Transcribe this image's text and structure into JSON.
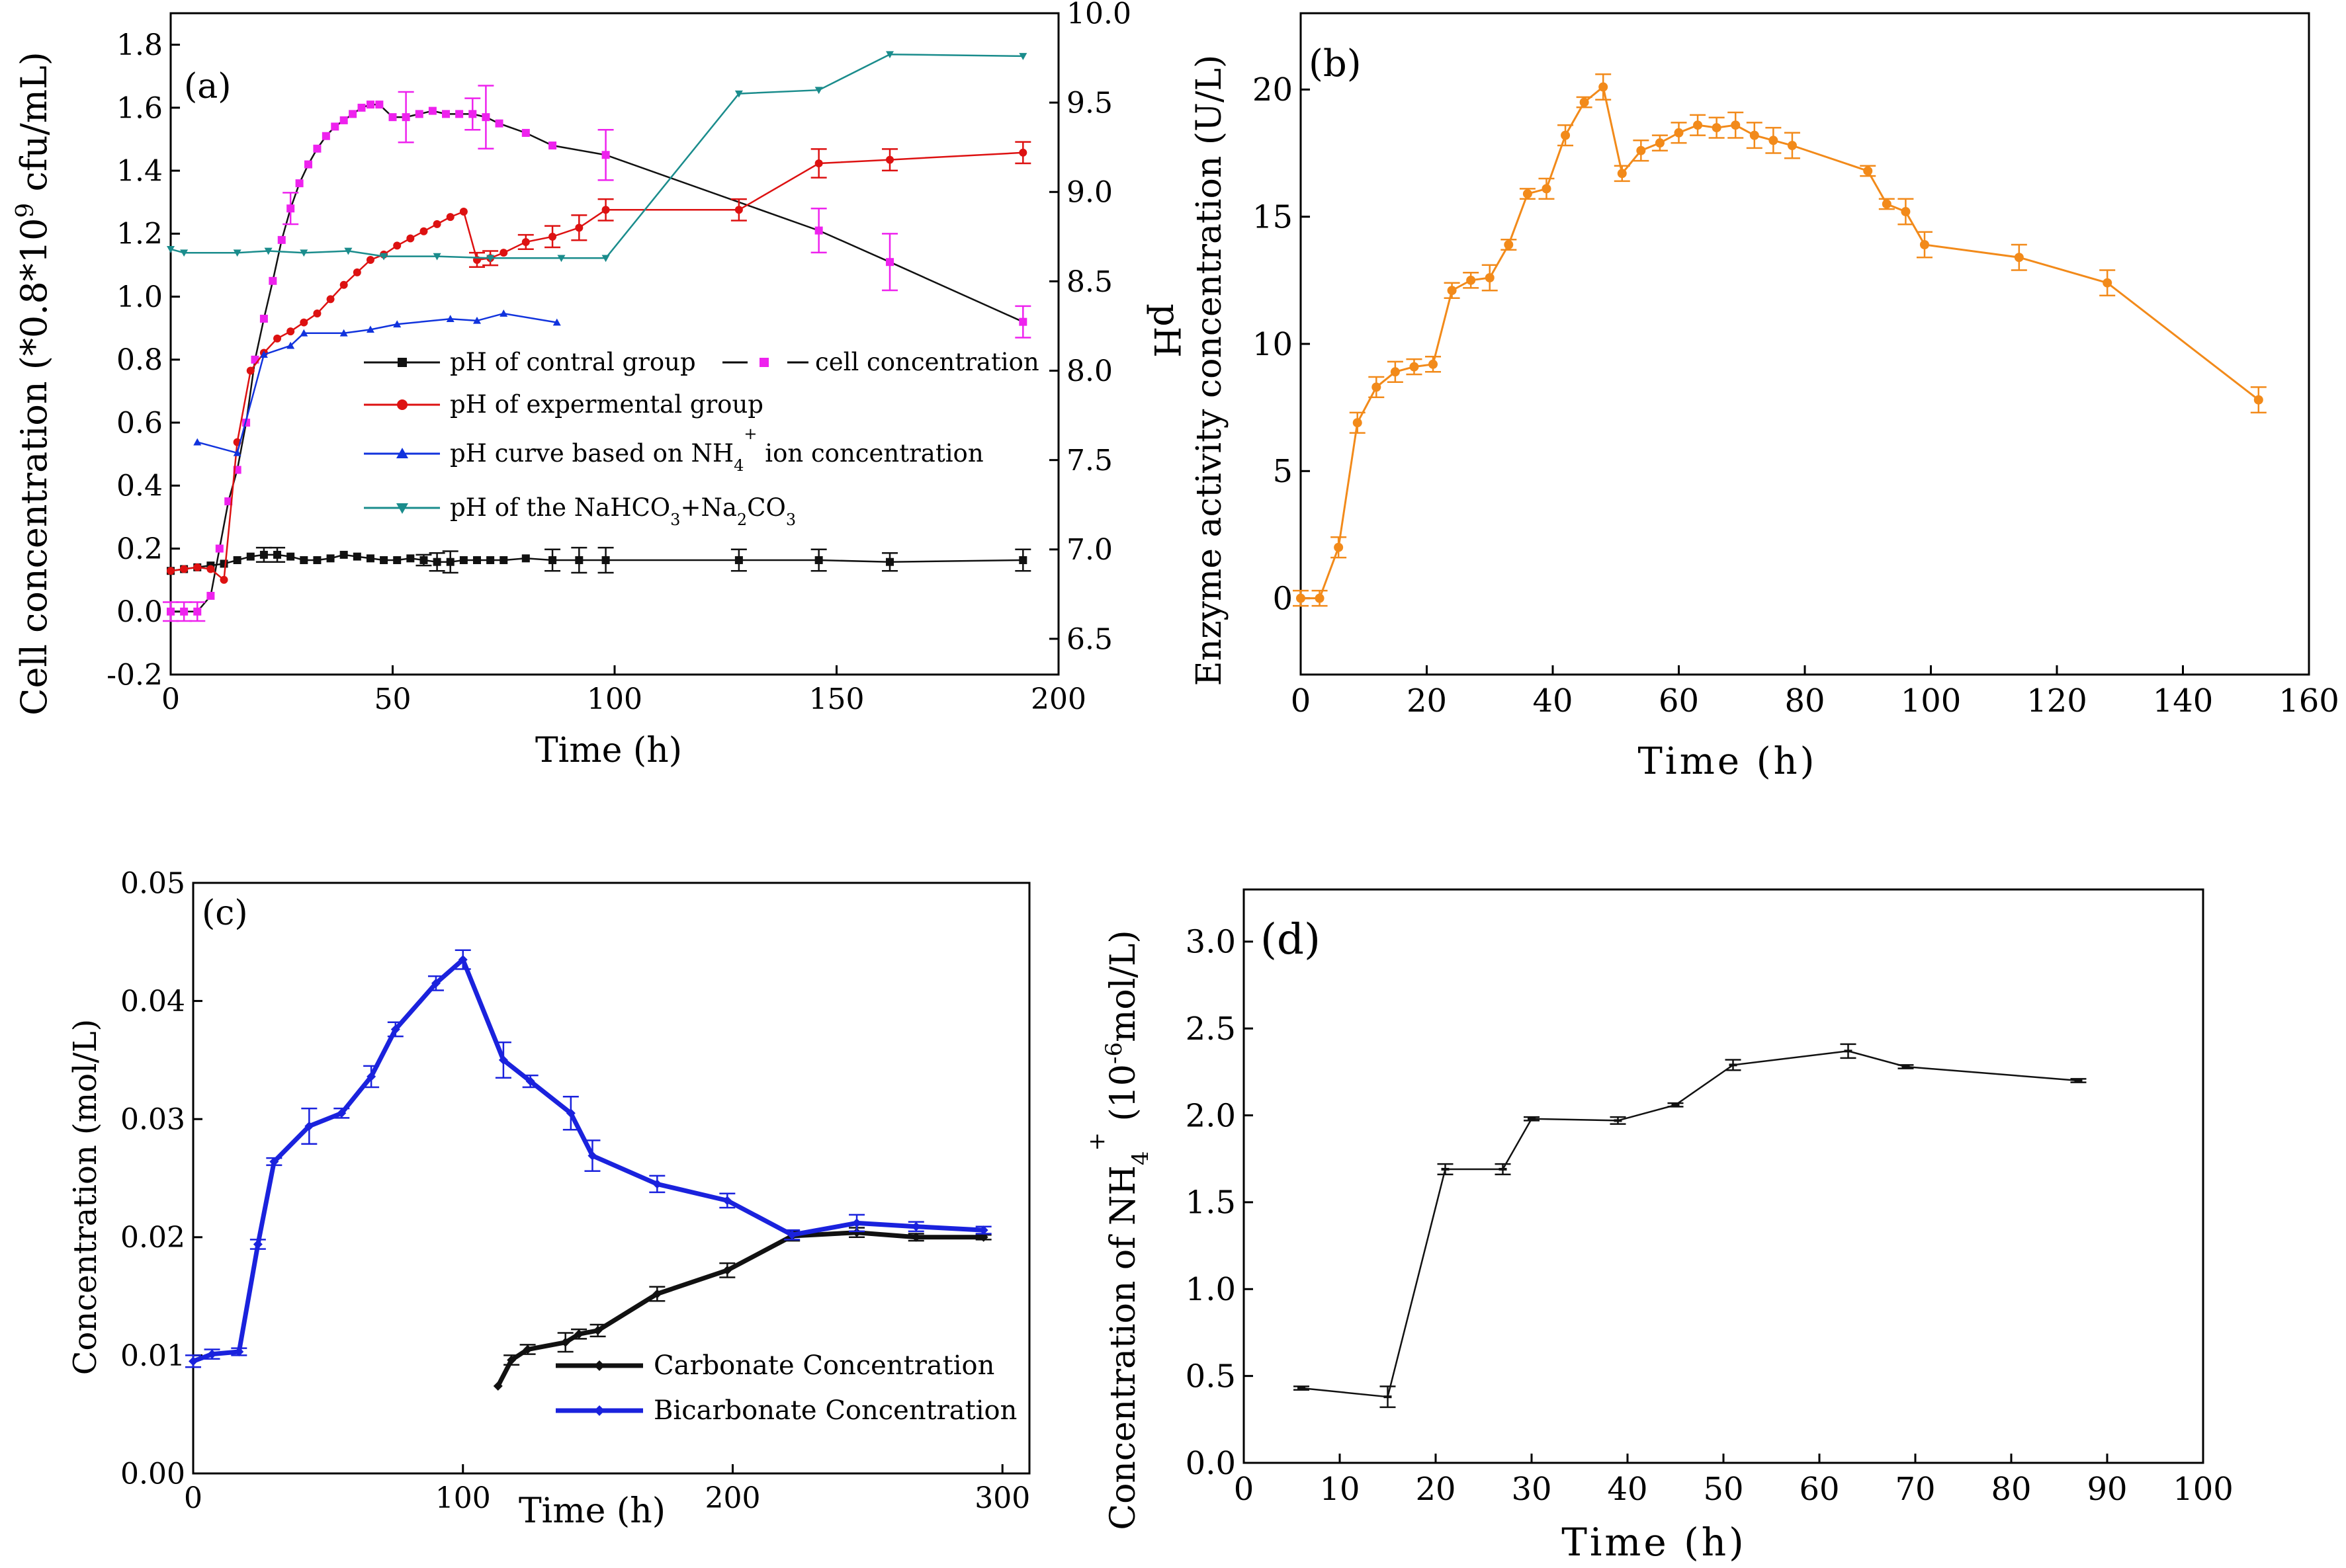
{
  "chart_data": [
    {
      "panel": "a",
      "panel_label": "(a)",
      "type": "line",
      "xlabel": "Time (h)",
      "ylabel_left": "Cell concentration (*0.8*10⁹ cfu/mL)",
      "ylabel_right": "pH",
      "xlim": [
        0,
        200
      ],
      "ylim_left": [
        -0.2,
        1.9
      ],
      "ylim_right": [
        6.3,
        10.0
      ],
      "x_ticks": [
        "0",
        "50",
        "100",
        "150",
        "200"
      ],
      "y_ticks_left": [
        "-0.2",
        "0.0",
        "0.2",
        "0.4",
        "0.6",
        "0.8",
        "1.0",
        "1.2",
        "1.4",
        "1.6",
        "1.8"
      ],
      "y_ticks_right": [
        "6.5",
        "7.0",
        "7.5",
        "8.0",
        "8.5",
        "9.0",
        "9.5",
        "10.0"
      ],
      "legend": [
        "pH of contral group",
        "cell concentration",
        "pH of expermental group",
        "pH curve based on NH4+ ion concentration",
        "pH of the NaHCO3+Na2CO3"
      ],
      "series": [
        {
          "name": "pH of contral group",
          "axis": "right",
          "color": "#111111",
          "marker": "square",
          "x": [
            0,
            3,
            6,
            9,
            12,
            15,
            18,
            21,
            24,
            27,
            30,
            33,
            36,
            39,
            42,
            45,
            48,
            51,
            54,
            57,
            60,
            63,
            66,
            69,
            72,
            75,
            80,
            86,
            92,
            98,
            128,
            146,
            162,
            192
          ],
          "y": [
            6.88,
            6.89,
            6.9,
            6.91,
            6.92,
            6.94,
            6.96,
            6.97,
            6.97,
            6.96,
            6.94,
            6.94,
            6.95,
            6.97,
            6.96,
            6.95,
            6.94,
            6.94,
            6.95,
            6.94,
            6.93,
            6.93,
            6.94,
            6.94,
            6.94,
            6.94,
            6.95,
            6.94,
            6.94,
            6.94,
            6.94,
            6.94,
            6.93,
            6.94
          ],
          "err": [
            0,
            0,
            0,
            0,
            0,
            0,
            0,
            0.04,
            0.04,
            0,
            0,
            0,
            0,
            0,
            0,
            0,
            0,
            0,
            0,
            0.03,
            0.05,
            0.06,
            0,
            0,
            0,
            0,
            0,
            0.06,
            0.07,
            0.07,
            0.06,
            0.06,
            0.05,
            0.06
          ]
        },
        {
          "name": "cell concentration",
          "axis": "left",
          "color": "#ee22ee",
          "marker": "square",
          "x": [
            0,
            3,
            6,
            9,
            11,
            13,
            15,
            17,
            19,
            21,
            23,
            25,
            27,
            29,
            31,
            33,
            35,
            37,
            39,
            41,
            43,
            45,
            47,
            50,
            53,
            56,
            59,
            62,
            65,
            68,
            71,
            74,
            80,
            86,
            98,
            146,
            162,
            192
          ],
          "y": [
            0.0,
            0.0,
            0.0,
            0.05,
            0.2,
            0.35,
            0.45,
            0.6,
            0.8,
            0.93,
            1.05,
            1.18,
            1.28,
            1.36,
            1.42,
            1.47,
            1.51,
            1.54,
            1.56,
            1.58,
            1.6,
            1.61,
            1.61,
            1.57,
            1.57,
            1.58,
            1.59,
            1.58,
            1.58,
            1.58,
            1.57,
            1.55,
            1.52,
            1.48,
            1.45,
            1.21,
            1.11,
            0.92
          ],
          "err": [
            0.03,
            0.03,
            0.03,
            0,
            0,
            0,
            0,
            0,
            0,
            0,
            0,
            0,
            0.05,
            0,
            0,
            0,
            0,
            0,
            0,
            0,
            0,
            0,
            0,
            0,
            0.08,
            0,
            0,
            0,
            0,
            0.05,
            0.1,
            0,
            0,
            0,
            0.08,
            0.07,
            0.09,
            0.05
          ]
        },
        {
          "name": "pH of expermental group",
          "axis": "right",
          "color": "#dd1111",
          "marker": "circle",
          "x": [
            0,
            3,
            6,
            9,
            12,
            15,
            18,
            21,
            24,
            27,
            30,
            33,
            36,
            39,
            42,
            45,
            48,
            51,
            54,
            57,
            60,
            63,
            66,
            69,
            72,
            75,
            80,
            86,
            92,
            98,
            128,
            146,
            162,
            192
          ],
          "y": [
            6.88,
            6.89,
            6.9,
            6.89,
            6.83,
            7.6,
            8.0,
            8.1,
            8.18,
            8.22,
            8.27,
            8.32,
            8.4,
            8.48,
            8.55,
            8.62,
            8.65,
            8.7,
            8.74,
            8.78,
            8.82,
            8.86,
            8.89,
            8.62,
            8.63,
            8.66,
            8.72,
            8.75,
            8.8,
            8.9,
            8.9,
            9.16,
            9.18,
            9.22
          ],
          "err": [
            0,
            0,
            0,
            0,
            0,
            0,
            0,
            0,
            0,
            0,
            0,
            0,
            0,
            0,
            0,
            0,
            0,
            0,
            0,
            0,
            0,
            0,
            0,
            0.04,
            0.04,
            0,
            0.04,
            0.06,
            0.07,
            0.06,
            0.06,
            0.08,
            0.06,
            0.06
          ]
        },
        {
          "name": "pH curve based on NH4+ ion concentration",
          "axis": "right",
          "color": "#1133dd",
          "marker": "triangle",
          "x": [
            6,
            15,
            21,
            27,
            30,
            39,
            45,
            51,
            63,
            69,
            75,
            87
          ],
          "y": [
            7.6,
            7.54,
            8.09,
            8.14,
            8.21,
            8.21,
            8.23,
            8.26,
            8.29,
            8.28,
            8.32,
            8.27
          ],
          "err": [
            0,
            0,
            0,
            0,
            0,
            0,
            0,
            0,
            0,
            0,
            0,
            0
          ]
        },
        {
          "name": "pH of the NaHCO3+Na2CO3",
          "axis": "right",
          "color": "#1a8c8c",
          "marker": "triangle-down",
          "x": [
            0,
            3,
            15,
            22,
            30,
            40,
            48,
            60,
            72,
            88,
            98,
            128,
            146,
            162,
            192
          ],
          "y": [
            8.68,
            8.66,
            8.66,
            8.67,
            8.66,
            8.67,
            8.64,
            8.64,
            8.63,
            8.63,
            8.63,
            9.55,
            9.57,
            9.77,
            9.76
          ],
          "err": [
            0,
            0,
            0,
            0,
            0,
            0,
            0,
            0,
            0,
            0,
            0,
            0,
            0,
            0,
            0
          ]
        }
      ]
    },
    {
      "panel": "b",
      "panel_label": "(b)",
      "type": "line",
      "xlabel": "Time (h)",
      "ylabel": "Enzyme activity concentration (U/L)",
      "xlim": [
        0,
        160
      ],
      "ylim": [
        -3,
        23
      ],
      "x_ticks": [
        "0",
        "20",
        "40",
        "60",
        "80",
        "100",
        "120",
        "140",
        "160"
      ],
      "y_ticks": [
        "0",
        "5",
        "10",
        "15",
        "20"
      ],
      "series": [
        {
          "name": "Enzyme activity",
          "color": "#f28a1a",
          "marker": "circle",
          "x": [
            0,
            3,
            6,
            9,
            12,
            15,
            18,
            21,
            24,
            27,
            30,
            33,
            36,
            39,
            42,
            45,
            48,
            51,
            54,
            57,
            60,
            63,
            66,
            69,
            72,
            75,
            78,
            90,
            93,
            96,
            99,
            114,
            128,
            152
          ],
          "y": [
            0.0,
            0.0,
            2.0,
            6.9,
            8.3,
            8.9,
            9.1,
            9.2,
            12.1,
            12.5,
            12.6,
            13.9,
            15.9,
            16.1,
            18.2,
            19.5,
            20.1,
            16.7,
            17.6,
            17.9,
            18.3,
            18.6,
            18.5,
            18.6,
            18.2,
            18.0,
            17.8,
            16.8,
            15.5,
            15.2,
            13.9,
            13.4,
            12.4,
            7.8
          ],
          "err": [
            0.3,
            0.3,
            0.4,
            0.4,
            0.4,
            0.4,
            0.3,
            0.3,
            0.3,
            0.3,
            0.5,
            0.2,
            0.2,
            0.4,
            0.4,
            0.2,
            0.5,
            0.3,
            0.4,
            0.3,
            0.4,
            0.4,
            0.4,
            0.5,
            0.5,
            0.5,
            0.5,
            0.2,
            0.2,
            0.5,
            0.5,
            0.5,
            0.5,
            0.5
          ]
        }
      ]
    },
    {
      "panel": "c",
      "panel_label": "(c)",
      "type": "line",
      "xlabel": "Time (h)",
      "ylabel": "Concentration (mol/L)",
      "xlim": [
        0,
        310
      ],
      "ylim": [
        0,
        0.05
      ],
      "x_ticks": [
        "0",
        "100",
        "200",
        "300"
      ],
      "y_ticks": [
        "0.00",
        "0.01",
        "0.02",
        "0.03",
        "0.04",
        "0.05"
      ],
      "legend": [
        "Carbonate Concentration",
        "Bicarbonate Concentration"
      ],
      "series": [
        {
          "name": "Carbonate Concentration",
          "color": "#111111",
          "marker": "diamond",
          "x": [
            113,
            118,
            124,
            138,
            143,
            150,
            172,
            198,
            222,
            246,
            268,
            293
          ],
          "y": [
            0.0074,
            0.0096,
            0.0105,
            0.0111,
            0.0118,
            0.0121,
            0.0152,
            0.0172,
            0.0201,
            0.0204,
            0.02,
            0.02
          ],
          "err": [
            0,
            0.0004,
            0.0004,
            0.0008,
            0.0004,
            0.0005,
            0.0006,
            0.0006,
            0.0004,
            0.0004,
            0.0003,
            0.0002
          ]
        },
        {
          "name": "Bicarbonate Concentration",
          "color": "#1a22dd",
          "marker": "diamond",
          "x": [
            0,
            7,
            17,
            24,
            30,
            43,
            55,
            66,
            75,
            90,
            100,
            115,
            125,
            140,
            148,
            172,
            198,
            222,
            246,
            268,
            293
          ],
          "y": [
            0.0095,
            0.0101,
            0.0103,
            0.0194,
            0.0264,
            0.0294,
            0.0305,
            0.0336,
            0.0376,
            0.0415,
            0.0435,
            0.035,
            0.0332,
            0.0305,
            0.0269,
            0.0245,
            0.0231,
            0.0202,
            0.0212,
            0.0209,
            0.0206
          ],
          "err": [
            0.0005,
            0.0004,
            0.0003,
            0.0004,
            0.0003,
            0.0015,
            0.0004,
            0.0009,
            0.0006,
            0.0006,
            0.0008,
            0.0015,
            0.0005,
            0.0014,
            0.0013,
            0.0007,
            0.0006,
            0.0004,
            0.0007,
            0.0004,
            0.0003
          ]
        }
      ]
    },
    {
      "panel": "d",
      "panel_label": "(d)",
      "type": "line",
      "xlabel": "Time (h)",
      "ylabel": "Concentration of NH4+ (10⁻⁶ mol/L)",
      "xlim": [
        0,
        100
      ],
      "ylim": [
        0,
        3.3
      ],
      "x_ticks": [
        "0",
        "10",
        "20",
        "30",
        "40",
        "50",
        "60",
        "70",
        "80",
        "90",
        "100"
      ],
      "y_ticks": [
        "0.0",
        "0.5",
        "1.0",
        "1.5",
        "2.0",
        "2.5",
        "3.0"
      ],
      "series": [
        {
          "name": "NH4+ concentration",
          "color": "#111111",
          "marker": "dash",
          "x": [
            6,
            15,
            21,
            27,
            30,
            39,
            45,
            51,
            63,
            69,
            87
          ],
          "y": [
            0.43,
            0.38,
            1.69,
            1.69,
            1.98,
            1.97,
            2.06,
            2.29,
            2.37,
            2.28,
            2.2
          ],
          "err": [
            0.01,
            0.06,
            0.03,
            0.03,
            0.01,
            0.02,
            0.01,
            0.03,
            0.04,
            0.01,
            0.01
          ]
        }
      ]
    }
  ],
  "legend_extras": {
    "contral_line": "pH of contral group",
    "cell_line": "cell concentration",
    "exp_line": "pH of expermental group",
    "nh4_pre": "pH curve based on NH",
    "nh4_sub": "4",
    "nh4_sup": "+",
    "nh4_post": " ion concentration",
    "nahco3_pre": "pH of the NaHCO",
    "nahco3_sub1": "3",
    "nahco3_mid": "+Na",
    "nahco3_sub2": "2",
    "nahco3_mid2": "CO",
    "nahco3_sub3": "3"
  },
  "axis_label_parts": {
    "a_left_main": "Cell concentration (*0.8*10",
    "a_left_sup": "9",
    "a_left_end": " cfu/mL)",
    "d_main": "Concentration of NH",
    "d_sub": "4",
    "d_sup": "+",
    "d_paren": " (10",
    "d_sup2": "-6",
    "d_end": "mol/L)"
  }
}
